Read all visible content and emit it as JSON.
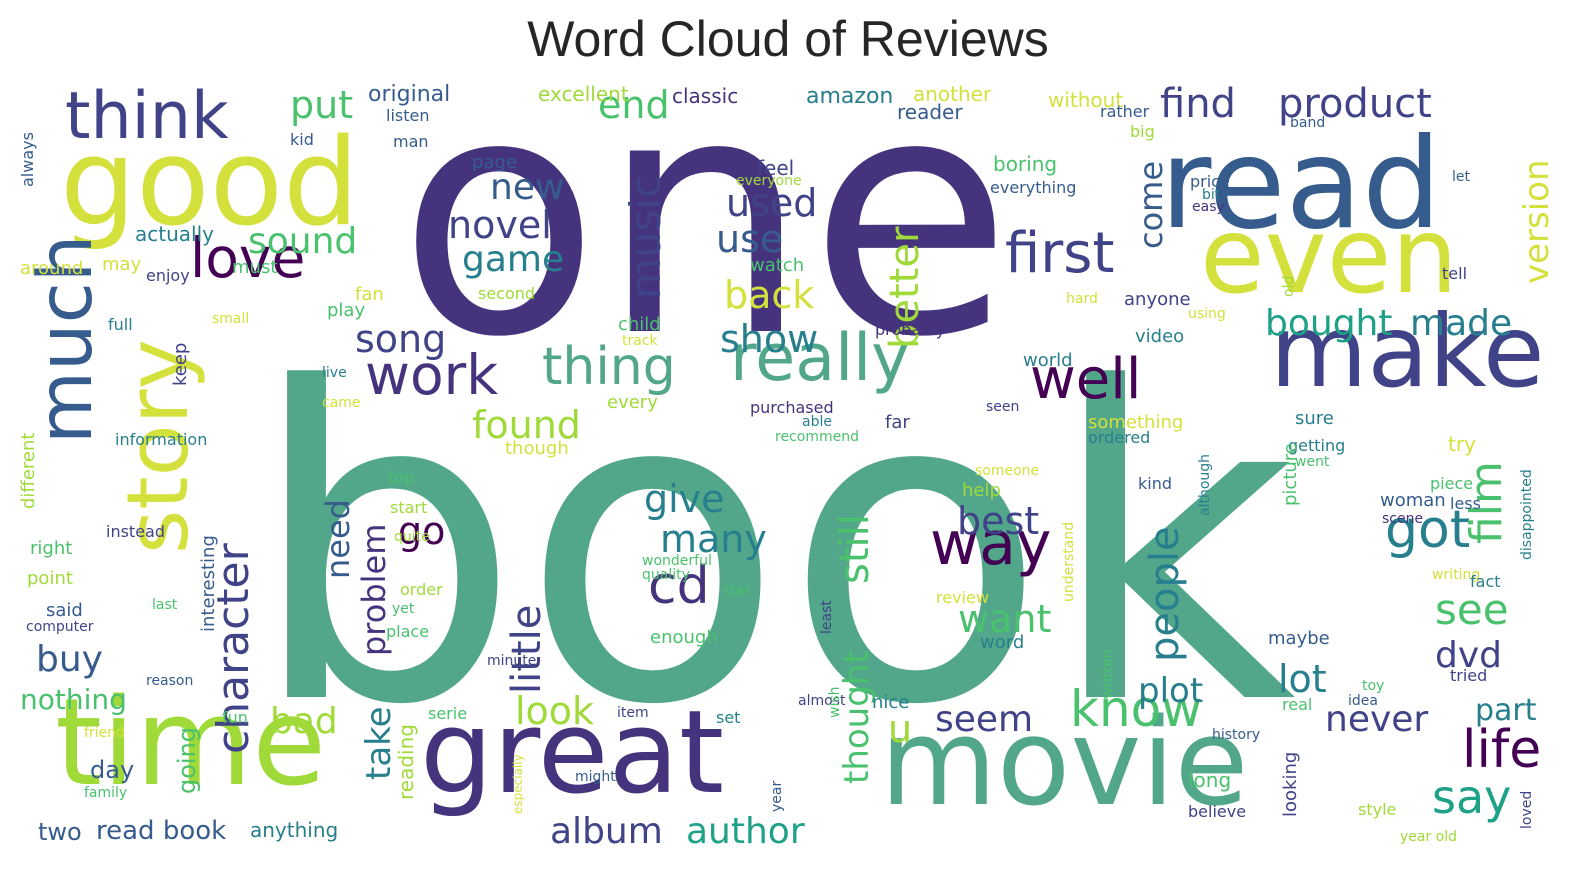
{
  "title": "Word Cloud of Reviews",
  "palette": {
    "viridis_dark": "#46337e",
    "viridis_navy": "#404387",
    "viridis_blue": "#365c8d",
    "viridis_teal_blue": "#277f8e",
    "viridis_teal": "#1fa187",
    "viridis_green": "#4ac16d",
    "viridis_sea": "#54a88a",
    "viridis_lime": "#a0da39",
    "viridis_yellow": "#d4e03b",
    "viridis_purple": "#440154"
  },
  "words": [
    {
      "text": "one",
      "color": "#46337e"
    },
    {
      "text": "book",
      "color": "#52a78a"
    },
    {
      "text": "good",
      "color": "#d4e03b"
    },
    {
      "text": "read",
      "color": "#365c8d"
    },
    {
      "text": "even",
      "color": "#d4e03b"
    },
    {
      "text": "time",
      "color": "#a0da39"
    },
    {
      "text": "great",
      "color": "#46337e"
    },
    {
      "text": "movie",
      "color": "#52a78a"
    },
    {
      "text": "make",
      "color": "#404387"
    },
    {
      "text": "story",
      "color": "#d4e03b"
    },
    {
      "text": "much",
      "color": "#365c8d"
    },
    {
      "text": "think",
      "color": "#404387"
    },
    {
      "text": "really",
      "color": "#52a78a"
    },
    {
      "text": "first",
      "color": "#404387"
    },
    {
      "text": "work",
      "color": "#46337e"
    },
    {
      "text": "well",
      "color": "#440154"
    },
    {
      "text": "know",
      "color": "#4ac16d"
    },
    {
      "text": "love",
      "color": "#440154"
    },
    {
      "text": "thing",
      "color": "#52a78a"
    },
    {
      "text": "character",
      "color": "#404387"
    },
    {
      "text": "way",
      "color": "#440154"
    },
    {
      "text": "people",
      "color": "#277f8e"
    },
    {
      "text": "little",
      "color": "#404387"
    },
    {
      "text": "still",
      "color": "#4ac16d"
    },
    {
      "text": "cd",
      "color": "#46337e"
    },
    {
      "text": "got",
      "color": "#277f8e"
    },
    {
      "text": "film",
      "color": "#4ac16d"
    },
    {
      "text": "life",
      "color": "#440154"
    },
    {
      "text": "say",
      "color": "#1fa187"
    },
    {
      "text": "music",
      "color": "#404387"
    },
    {
      "text": "better",
      "color": "#a0da39"
    },
    {
      "text": "product",
      "color": "#404387"
    },
    {
      "text": "find",
      "color": "#404387"
    },
    {
      "text": "put",
      "color": "#4ac16d"
    },
    {
      "text": "end",
      "color": "#4ac16d"
    },
    {
      "text": "new",
      "color": "#365c8d"
    },
    {
      "text": "novel",
      "color": "#404387"
    },
    {
      "text": "game",
      "color": "#277f8e"
    },
    {
      "text": "used",
      "color": "#404387"
    },
    {
      "text": "use",
      "color": "#365c8d"
    },
    {
      "text": "come",
      "color": "#365c8d"
    },
    {
      "text": "back",
      "color": "#d4e03b"
    },
    {
      "text": "show",
      "color": "#277f8e"
    },
    {
      "text": "sound",
      "color": "#4ac16d"
    },
    {
      "text": "song",
      "color": "#404387"
    },
    {
      "text": "found",
      "color": "#a0da39"
    },
    {
      "text": "give",
      "color": "#277f8e"
    },
    {
      "text": "many",
      "color": "#277f8e"
    },
    {
      "text": "best",
      "color": "#404387"
    },
    {
      "text": "go",
      "color": "#440154"
    },
    {
      "text": "need",
      "color": "#365c8d"
    },
    {
      "text": "problem",
      "color": "#46337e"
    },
    {
      "text": "want",
      "color": "#4ac16d"
    },
    {
      "text": "seem",
      "color": "#404387"
    },
    {
      "text": "see",
      "color": "#4ac16d"
    },
    {
      "text": "bought",
      "color": "#1fa187"
    },
    {
      "text": "made",
      "color": "#277f8e"
    },
    {
      "text": "version",
      "color": "#d4e03b"
    },
    {
      "text": "dvd",
      "color": "#404387"
    },
    {
      "text": "lot",
      "color": "#277f8e"
    },
    {
      "text": "plot",
      "color": "#277f8e"
    },
    {
      "text": "never",
      "color": "#404387"
    },
    {
      "text": "part",
      "color": "#277f8e"
    },
    {
      "text": "buy",
      "color": "#365c8d"
    },
    {
      "text": "bad",
      "color": "#a0da39"
    },
    {
      "text": "look",
      "color": "#a0da39"
    },
    {
      "text": "take",
      "color": "#277f8e"
    },
    {
      "text": "thought",
      "color": "#4ac16d"
    },
    {
      "text": "u",
      "color": "#a0da39"
    },
    {
      "text": "album",
      "color": "#404387"
    },
    {
      "text": "author",
      "color": "#1fa187"
    },
    {
      "text": "nothing",
      "color": "#4ac16d"
    },
    {
      "text": "going",
      "color": "#4ac16d"
    },
    {
      "text": "day",
      "color": "#365c8d"
    },
    {
      "text": "two",
      "color": "#365c8d"
    },
    {
      "text": "read book",
      "color": "#365c8d"
    },
    {
      "text": "anything",
      "color": "#277f8e"
    },
    {
      "text": "reading",
      "color": "#a0da39"
    },
    {
      "text": "original",
      "color": "#365c8d"
    },
    {
      "text": "excellent",
      "color": "#a0da39"
    },
    {
      "text": "classic",
      "color": "#46337e"
    },
    {
      "text": "amazon",
      "color": "#277f8e"
    },
    {
      "text": "another",
      "color": "#d4e03b"
    },
    {
      "text": "without",
      "color": "#d4e03b"
    },
    {
      "text": "reader",
      "color": "#365c8d"
    },
    {
      "text": "rather",
      "color": "#365c8d"
    },
    {
      "text": "band",
      "color": "#365c8d"
    },
    {
      "text": "big",
      "color": "#a0da39"
    },
    {
      "text": "listen",
      "color": "#365c8d"
    },
    {
      "text": "kid",
      "color": "#365c8d"
    },
    {
      "text": "man",
      "color": "#365c8d"
    },
    {
      "text": "page",
      "color": "#365c8d"
    },
    {
      "text": "feel",
      "color": "#404387"
    },
    {
      "text": "everyone",
      "color": "#a0da39"
    },
    {
      "text": "boring",
      "color": "#4ac16d"
    },
    {
      "text": "everything",
      "color": "#365c8d"
    },
    {
      "text": "price",
      "color": "#365c8d"
    },
    {
      "text": "bit",
      "color": "#277f8e"
    },
    {
      "text": "easy",
      "color": "#46337e"
    },
    {
      "text": "let",
      "color": "#365c8d"
    },
    {
      "text": "always",
      "color": "#365c8d"
    },
    {
      "text": "actually",
      "color": "#277f8e"
    },
    {
      "text": "around",
      "color": "#d4e03b"
    },
    {
      "text": "may",
      "color": "#d4e03b"
    },
    {
      "text": "enjoy",
      "color": "#404387"
    },
    {
      "text": "must",
      "color": "#4ac16d"
    },
    {
      "text": "watch",
      "color": "#4ac16d"
    },
    {
      "text": "second",
      "color": "#a0da39"
    },
    {
      "text": "tell",
      "color": "#404387"
    },
    {
      "text": "hard",
      "color": "#d4e03b"
    },
    {
      "text": "anyone",
      "color": "#404387"
    },
    {
      "text": "old",
      "color": "#a0da39"
    },
    {
      "text": "fan",
      "color": "#d4e03b"
    },
    {
      "text": "full",
      "color": "#277f8e"
    },
    {
      "text": "small",
      "color": "#d4e03b"
    },
    {
      "text": "play",
      "color": "#4ac16d"
    },
    {
      "text": "child",
      "color": "#4ac16d"
    },
    {
      "text": "track",
      "color": "#d4e03b"
    },
    {
      "text": "probably",
      "color": "#46337e"
    },
    {
      "text": "using",
      "color": "#d4e03b"
    },
    {
      "text": "video",
      "color": "#277f8e"
    },
    {
      "text": "live",
      "color": "#277f8e"
    },
    {
      "text": "world",
      "color": "#277f8e"
    },
    {
      "text": "keep",
      "color": "#404387"
    },
    {
      "text": "came",
      "color": "#d4e03b"
    },
    {
      "text": "every",
      "color": "#a0da39"
    },
    {
      "text": "purchased",
      "color": "#46337e"
    },
    {
      "text": "able",
      "color": "#277f8e"
    },
    {
      "text": "recommend",
      "color": "#4ac16d"
    },
    {
      "text": "far",
      "color": "#404387"
    },
    {
      "text": "seen",
      "color": "#404387"
    },
    {
      "text": "something",
      "color": "#d4e03b"
    },
    {
      "text": "ordered",
      "color": "#277f8e"
    },
    {
      "text": "sure",
      "color": "#277f8e"
    },
    {
      "text": "getting",
      "color": "#277f8e"
    },
    {
      "text": "went",
      "color": "#4ac16d"
    },
    {
      "text": "try",
      "color": "#d4e03b"
    },
    {
      "text": "information",
      "color": "#277f8e"
    },
    {
      "text": "different",
      "color": "#a0da39"
    },
    {
      "text": "though",
      "color": "#d4e03b"
    },
    {
      "text": "top",
      "color": "#4ac16d"
    },
    {
      "text": "someone",
      "color": "#d4e03b"
    },
    {
      "text": "help",
      "color": "#a0da39"
    },
    {
      "text": "although",
      "color": "#277f8e"
    },
    {
      "text": "kind",
      "color": "#365c8d"
    },
    {
      "text": "picture",
      "color": "#4ac16d"
    },
    {
      "text": "piece",
      "color": "#4ac16d"
    },
    {
      "text": "less",
      "color": "#365c8d"
    },
    {
      "text": "start",
      "color": "#a0da39"
    },
    {
      "text": "woman",
      "color": "#365c8d"
    },
    {
      "text": "scene",
      "color": "#46337e"
    },
    {
      "text": "disappointed",
      "color": "#277f8e"
    },
    {
      "text": "instead",
      "color": "#404387"
    },
    {
      "text": "interesting",
      "color": "#365c8d"
    },
    {
      "text": "right",
      "color": "#4ac16d"
    },
    {
      "text": "quite",
      "color": "#a0da39"
    },
    {
      "text": "wonderful",
      "color": "#4ac16d"
    },
    {
      "text": "quality",
      "color": "#4ac16d"
    },
    {
      "text": "understand",
      "color": "#d4e03b"
    },
    {
      "text": "writing",
      "color": "#d4e03b"
    },
    {
      "text": "fact",
      "color": "#277f8e"
    },
    {
      "text": "point",
      "color": "#a0da39"
    },
    {
      "text": "order",
      "color": "#a0da39"
    },
    {
      "text": "star",
      "color": "#4ac16d"
    },
    {
      "text": "review",
      "color": "#d4e03b"
    },
    {
      "text": "said",
      "color": "#365c8d"
    },
    {
      "text": "last",
      "color": "#4ac16d"
    },
    {
      "text": "yet",
      "color": "#4ac16d"
    },
    {
      "text": "computer",
      "color": "#404387"
    },
    {
      "text": "place",
      "color": "#4ac16d"
    },
    {
      "text": "least",
      "color": "#404387"
    },
    {
      "text": "word",
      "color": "#277f8e"
    },
    {
      "text": "enough",
      "color": "#4ac16d"
    },
    {
      "text": "maybe",
      "color": "#365c8d"
    },
    {
      "text": "tried",
      "color": "#404387"
    },
    {
      "text": "minute",
      "color": "#404387"
    },
    {
      "text": "reason",
      "color": "#365c8d"
    },
    {
      "text": "written",
      "color": "#4ac16d"
    },
    {
      "text": "toy",
      "color": "#4ac16d"
    },
    {
      "text": "almost",
      "color": "#404387"
    },
    {
      "text": "wish",
      "color": "#4ac16d"
    },
    {
      "text": "nice",
      "color": "#277f8e"
    },
    {
      "text": "idea",
      "color": "#365c8d"
    },
    {
      "text": "real",
      "color": "#4ac16d"
    },
    {
      "text": "fun",
      "color": "#4ac16d"
    },
    {
      "text": "serie",
      "color": "#4ac16d"
    },
    {
      "text": "item",
      "color": "#404387"
    },
    {
      "text": "set",
      "color": "#277f8e"
    },
    {
      "text": "history",
      "color": "#365c8d"
    },
    {
      "text": "friend",
      "color": "#d4e03b"
    },
    {
      "text": "family",
      "color": "#4ac16d"
    },
    {
      "text": "especially",
      "color": "#d4e03b"
    },
    {
      "text": "might",
      "color": "#365c8d"
    },
    {
      "text": "year",
      "color": "#365c8d"
    },
    {
      "text": "long",
      "color": "#4ac16d"
    },
    {
      "text": "looking",
      "color": "#404387"
    },
    {
      "text": "believe",
      "color": "#404387"
    },
    {
      "text": "style",
      "color": "#a0da39"
    },
    {
      "text": "year old",
      "color": "#a0da39"
    },
    {
      "text": "loved",
      "color": "#404387"
    }
  ]
}
